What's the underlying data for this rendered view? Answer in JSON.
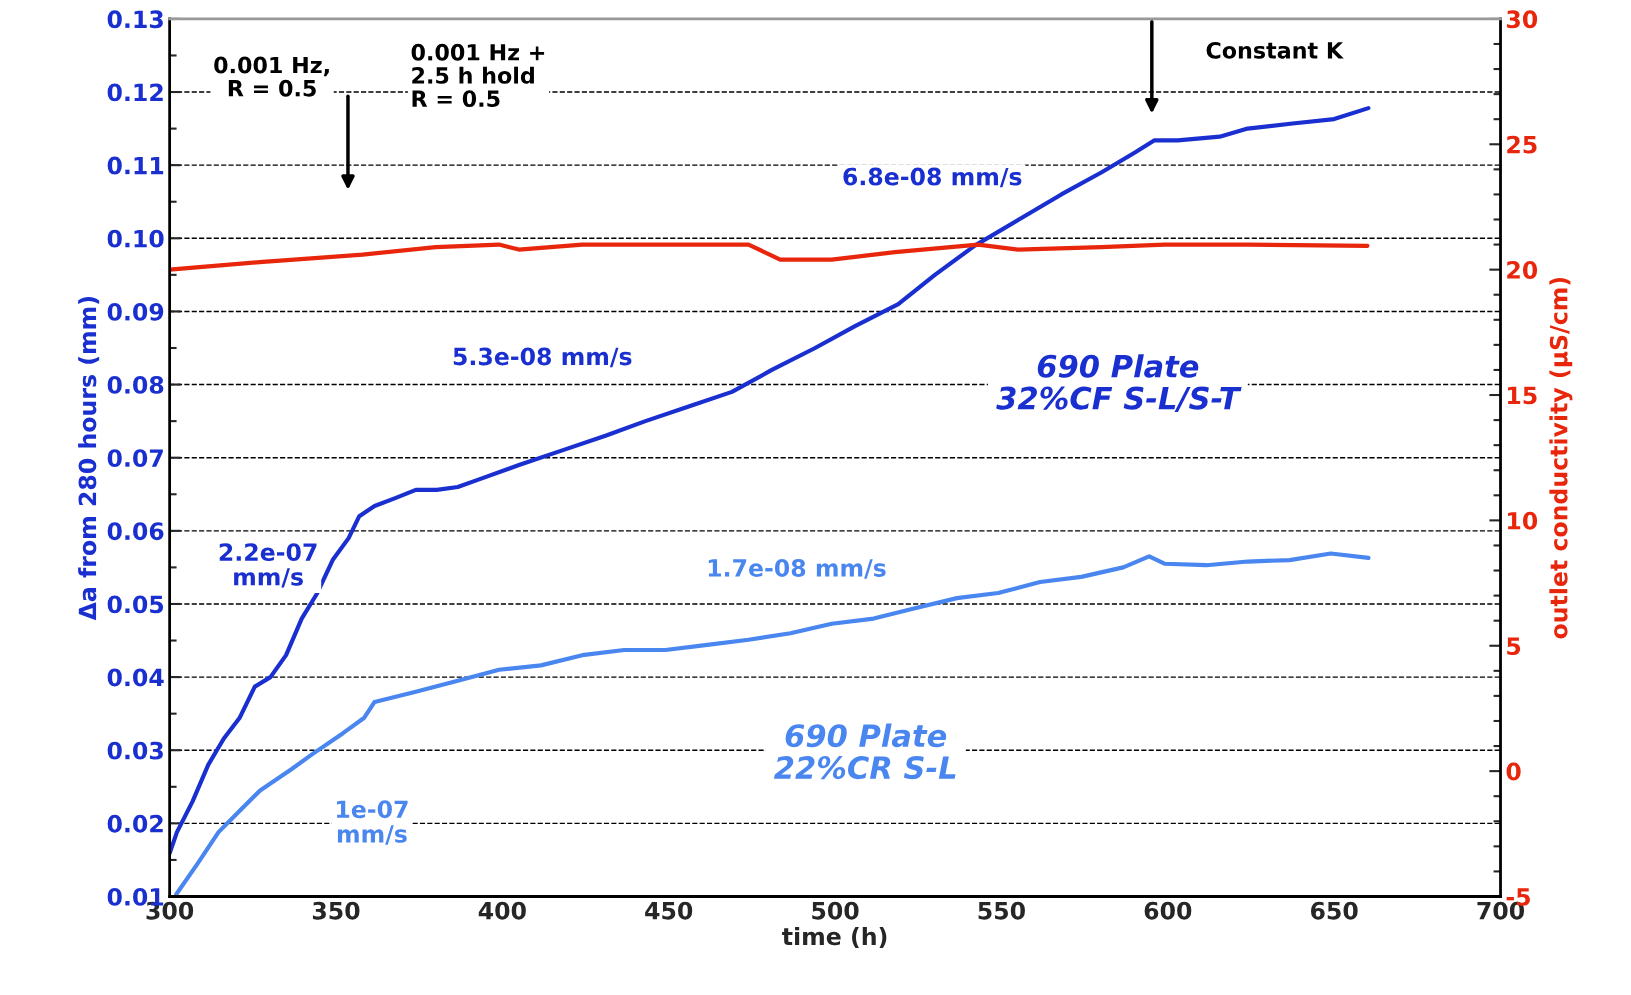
{
  "chart_data": {
    "type": "line",
    "xlabel": "time (h)",
    "ylabel": "Δa from 280 hours (mm)",
    "y2label": "outlet conductivity (μS/cm)",
    "xlim": [
      300,
      700
    ],
    "xticks": [
      300,
      350,
      400,
      450,
      500,
      550,
      600,
      650,
      700
    ],
    "ylim": [
      0.01,
      0.13
    ],
    "yticks": [
      {
        "value": 0.01,
        "label": "0.01"
      },
      {
        "value": 0.02,
        "label": "0.02"
      },
      {
        "value": 0.03,
        "label": "0.03"
      },
      {
        "value": 0.04,
        "label": "0.04"
      },
      {
        "value": 0.05,
        "label": "0.05"
      },
      {
        "value": 0.06,
        "label": "0.06"
      },
      {
        "value": 0.07,
        "label": "0.07"
      },
      {
        "value": 0.08,
        "label": "0.08"
      },
      {
        "value": 0.09,
        "label": "0.09"
      },
      {
        "value": 0.1,
        "label": "0.10"
      },
      {
        "value": 0.11,
        "label": "0.11"
      },
      {
        "value": 0.12,
        "label": "0.12"
      },
      {
        "value": 0.13,
        "label": "0.13"
      }
    ],
    "y2lim": [
      -5,
      30
    ],
    "y2ticks": [
      -5,
      0,
      5,
      10,
      15,
      20,
      25,
      30
    ],
    "grid": "y",
    "legend": false,
    "line_style": "solid",
    "marker": "none",
    "series": [
      {
        "color": "#1a2fd0",
        "x": [
          300,
          302.2,
          306.9,
          311.6,
          316.3,
          321,
          325.6,
          330.3,
          335,
          339.7,
          344.4,
          349,
          353.8,
          357,
          361.6,
          368,
          374,
          380.3,
          386.6,
          392.8,
          405,
          418,
          431,
          443,
          456,
          469,
          481,
          494,
          506,
          519,
          530,
          542,
          555,
          568,
          580,
          590,
          596,
          603,
          615.6,
          624,
          637.5,
          650,
          660.3
        ],
        "values": [
          0.0159,
          0.0188,
          0.023,
          0.028,
          0.0316,
          0.0344,
          0.0387,
          0.04,
          0.043,
          0.048,
          0.0515,
          0.056,
          0.059,
          0.062,
          0.0634,
          0.0645,
          0.0656,
          0.0656,
          0.066,
          0.067,
          0.069,
          0.071,
          0.073,
          0.075,
          0.077,
          0.079,
          0.082,
          0.085,
          0.088,
          0.091,
          0.095,
          0.099,
          0.1025,
          0.106,
          0.109,
          0.1117,
          0.1134,
          0.1134,
          0.1139,
          0.115,
          0.1157,
          0.1163,
          0.1178
        ]
      },
      {
        "color": "#4a86f0",
        "x": [
          302,
          308.4,
          314.7,
          321,
          327.2,
          336.6,
          343,
          352,
          358.4,
          361.6,
          374,
          386.6,
          399,
          411.6,
          424,
          436.6,
          449,
          461.6,
          474,
          486.6,
          499,
          511.6,
          524,
          536.6,
          549,
          561.6,
          574,
          586.6,
          594.4,
          599,
          611.6,
          624,
          636.6,
          649,
          660.3
        ],
        "values": [
          0.0103,
          0.0145,
          0.0188,
          0.0217,
          0.0245,
          0.0274,
          0.0295,
          0.0323,
          0.0344,
          0.0366,
          0.038,
          0.0395,
          0.041,
          0.0416,
          0.043,
          0.0437,
          0.0437,
          0.0444,
          0.0451,
          0.046,
          0.0473,
          0.048,
          0.0494,
          0.0508,
          0.0515,
          0.053,
          0.0537,
          0.055,
          0.0565,
          0.0555,
          0.0553,
          0.0558,
          0.056,
          0.0569,
          0.0563
        ]
      },
      {
        "color": "#e8260c",
        "axis": "y2",
        "x": [
          300,
          327,
          358,
          380,
          399,
          405,
          424,
          449,
          474,
          483.5,
          499,
          518,
          543,
          555,
          580,
          599,
          624,
          660
        ],
        "values": [
          20.0,
          20.3,
          20.6,
          20.9,
          21.0,
          20.8,
          21.0,
          21.0,
          21.0,
          20.4,
          20.4,
          20.7,
          21.0,
          20.8,
          20.9,
          21.0,
          21.0,
          20.95
        ]
      }
    ],
    "annotations": [
      "0.001 Hz,\nR = 0.5",
      "0.001 Hz +\n2.5 h hold\nR = 0.5",
      "Constant K",
      "2.2e-07\nmm/s",
      "5.3e-08 mm/s",
      "6.8e-08 mm/s",
      "1.7e-08 mm/s",
      "1e-07\nmm/s",
      "690 Plate\n32%CF S-L/S-T",
      "690 Plate\n22%CR S-L"
    ]
  }
}
